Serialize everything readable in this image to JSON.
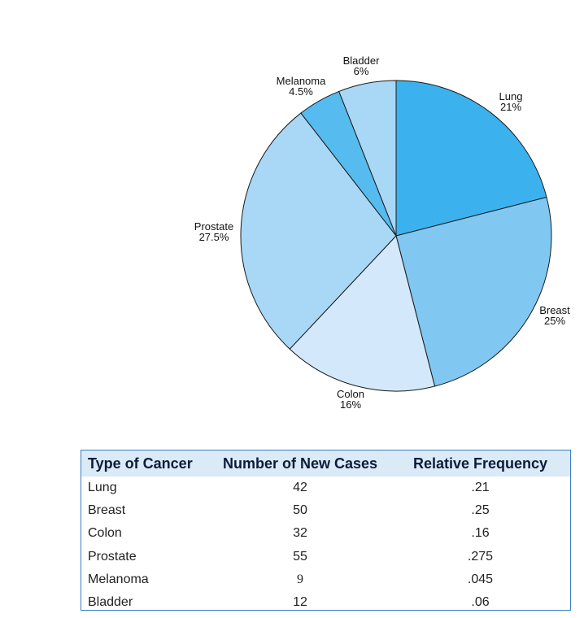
{
  "chart_data": {
    "type": "pie",
    "slices": [
      {
        "label": "Lung",
        "pct_label": "21%",
        "value": 21,
        "color": "#3bb2ee"
      },
      {
        "label": "Breast",
        "pct_label": "25%",
        "value": 25,
        "color": "#80c8f2"
      },
      {
        "label": "Colon",
        "pct_label": "16%",
        "value": 16,
        "color": "#d3e9fb"
      },
      {
        "label": "Prostate",
        "pct_label": "27.5%",
        "value": 27.5,
        "color": "#a9d8f6"
      },
      {
        "label": "Melanoma",
        "pct_label": "4.5%",
        "value": 4.5,
        "color": "#56bbee"
      },
      {
        "label": "Bladder",
        "pct_label": "6%",
        "value": 6,
        "color": "#a9d8f6"
      }
    ]
  },
  "table": {
    "headers": [
      "Type of Cancer",
      "Number of New Cases",
      "Relative Frequency"
    ],
    "rows": [
      [
        "Lung",
        "42",
        ".21"
      ],
      [
        "Breast",
        "50",
        ".25"
      ],
      [
        "Colon",
        "32",
        ".16"
      ],
      [
        "Prostate",
        "55",
        ".275"
      ],
      [
        "Melanoma",
        "9",
        ".045"
      ],
      [
        "Bladder",
        "12",
        ".06"
      ]
    ]
  }
}
